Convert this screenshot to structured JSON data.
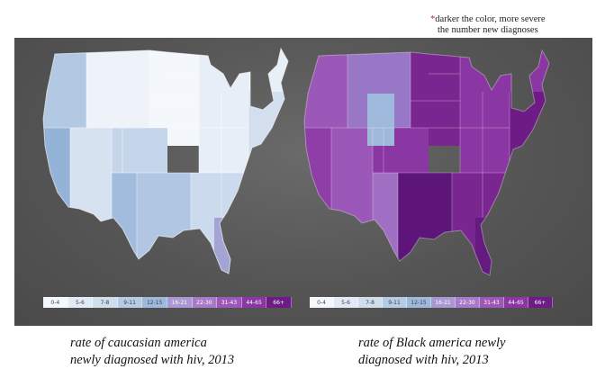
{
  "note": {
    "star": "*",
    "line1": "darker the color, more severe",
    "line2": "the number new diagnoses"
  },
  "legend": {
    "bins": [
      "0-4",
      "5-6",
      "7-8",
      "9-11",
      "12-15",
      "16-21",
      "22-30",
      "31-43",
      "44-65",
      "66+"
    ],
    "colors": [
      "#f4f7fb",
      "#e2ebf5",
      "#cfdded",
      "#b6cce4",
      "#9fb9dc",
      "#a999d2",
      "#a97ac8",
      "#9d57b8",
      "#8a37a3",
      "#6e1b86"
    ]
  },
  "maps": [
    {
      "caption_line1": "rate of caucasian america",
      "caption_line2": "newly diagnosed with hiv, 2013",
      "region_colors": {
        "pacific": "#b3c9e3",
        "california": "#94b3d9",
        "mountain_n": "#eef3f9",
        "mountain_s": "#d6e2f0",
        "southwest": "#a2bcdd",
        "plains_n": "#f4f7fb",
        "plains_s": "#c6d6ea",
        "texas": "#b0c6e2",
        "midwest": "#e7eef7",
        "south": "#cbdaec",
        "florida": "#a4a4d4",
        "northeast": "#d3dfee",
        "maine": "#e9eff7"
      }
    },
    {
      "caption_line1": "rate of Black america newly",
      "caption_line2": "diagnosed with hiv, 2013",
      "region_colors": {
        "pacific": "#9c58b8",
        "california": "#8e3ea6",
        "mountain_n": "#9878c6",
        "mountain_s": "#9c58b8",
        "southwest": "#a06fc4",
        "plains_n": "#7a2690",
        "plains_s": "#8a37a3",
        "texas": "#5e157a",
        "midwest": "#8a37a3",
        "south": "#7a2690",
        "florida": "#651a80",
        "northeast": "#6e1b86",
        "maine": "#8a37a3"
      }
    }
  ]
}
